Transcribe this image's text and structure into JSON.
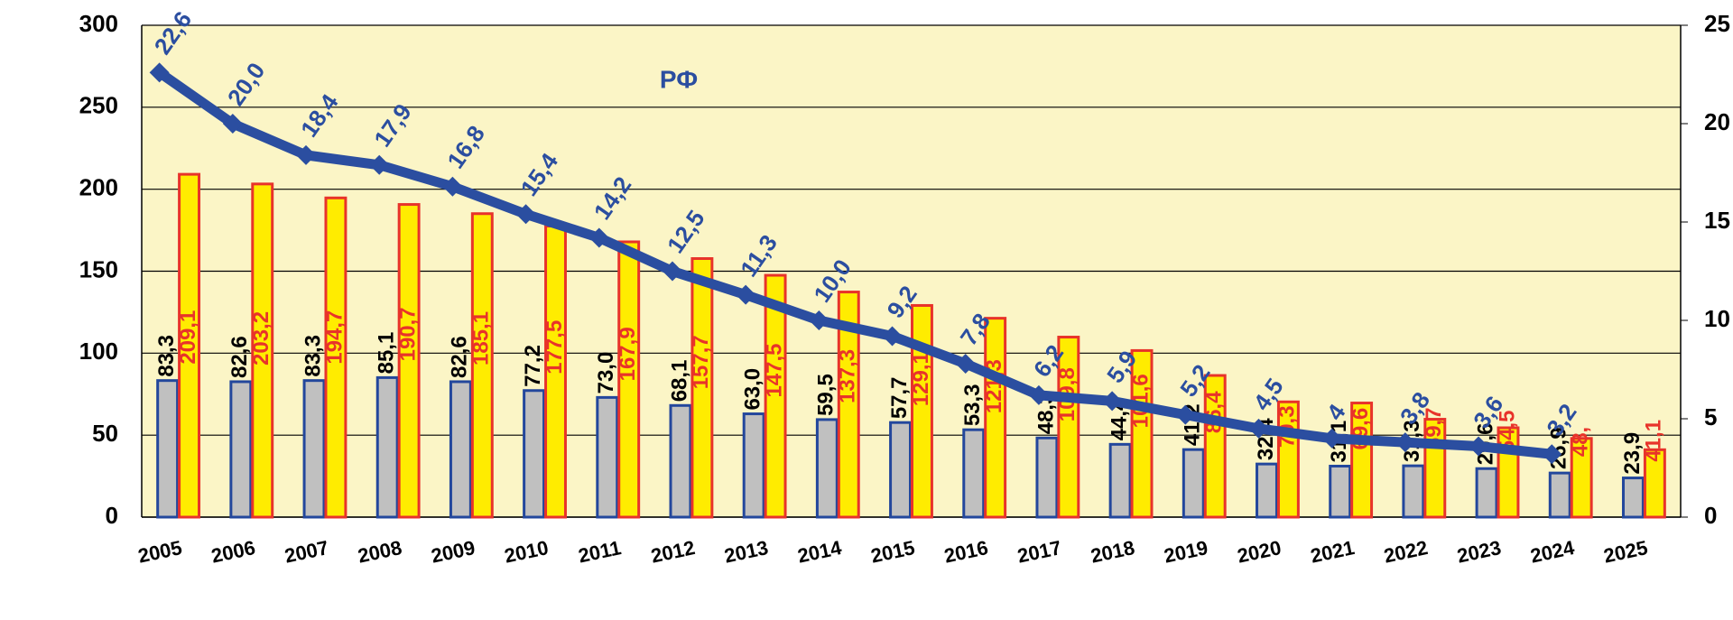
{
  "chart_data": {
    "type": "bar",
    "annotation": "РФ",
    "categories": [
      "2005",
      "2006",
      "2007",
      "2008",
      "2009",
      "2010",
      "2011",
      "2012",
      "2013",
      "2014",
      "2015",
      "2016",
      "2017",
      "2018",
      "2019",
      "2020",
      "2021",
      "2022",
      "2023",
      "2024",
      "2025"
    ],
    "series": [
      {
        "type": "bar",
        "color": "#c0c0c0",
        "edge": "#23479c",
        "label_color": "#000000",
        "values": [
          83.3,
          82.6,
          83.3,
          85.1,
          82.6,
          77.2,
          73.0,
          68.1,
          63.0,
          59.5,
          57.7,
          53.3,
          48.3,
          44.4,
          41.2,
          32.4,
          31.1,
          31.3,
          29.6,
          26.9,
          23.9
        ],
        "value_labels": [
          "83,3",
          "82,6",
          "83,3",
          "85,1",
          "82,6",
          "77,2",
          "73,0",
          "68,1",
          "63,0",
          "59,5",
          "57,7",
          "53,3",
          "48,3",
          "44,4",
          "41,2",
          "32,4",
          "31,1",
          "31,3",
          "29,6",
          "26,9",
          "23,9"
        ]
      },
      {
        "type": "bar",
        "color": "#ffec00",
        "edge": "#e8332a",
        "label_color": "#e8332a",
        "values": [
          209.1,
          203.2,
          194.7,
          190.7,
          185.1,
          177.5,
          167.9,
          157.7,
          147.5,
          137.3,
          129.1,
          121.3,
          109.8,
          101.6,
          86.4,
          70.3,
          69.6,
          59.7,
          54.5,
          48,
          41.1
        ],
        "value_labels": [
          "209,1",
          "203,2",
          "194,7",
          "190,7",
          "185,1",
          "177,5",
          "167,9",
          "157,7",
          "147,5",
          "137,3",
          "129,1",
          "121,3",
          "109,8",
          "101,6",
          "86,4",
          "70,3",
          "69,6",
          "59,7",
          "54,5",
          "48,",
          "41,1"
        ]
      },
      {
        "type": "line",
        "axis": "y2",
        "color": "#2b4ea0",
        "label_color": "#2b4ea0",
        "values": [
          22.6,
          20.0,
          18.4,
          17.9,
          16.8,
          15.4,
          14.2,
          12.5,
          11.3,
          10.0,
          9.2,
          7.8,
          6.2,
          5.9,
          5.2,
          4.5,
          4,
          3.8,
          3.6,
          3.2,
          null
        ],
        "value_labels": [
          "22,6",
          "20,0",
          "18,4",
          "17,9",
          "16,8",
          "15,4",
          "14,2",
          "12,5",
          "11,3",
          "10,0",
          "9,2",
          "7,8",
          "6,2",
          "5,9",
          "5,2",
          "4,5",
          "4",
          "3,8",
          "3,6",
          "3,2",
          null
        ]
      }
    ],
    "ylim": [
      0,
      300
    ],
    "yticks": [
      0,
      50,
      100,
      150,
      200,
      250,
      300
    ],
    "y2lim": [
      0,
      25
    ],
    "y2ticks": [
      0,
      5,
      10,
      15,
      20,
      25
    ],
    "grid": true,
    "plot_background": "#fbf5c6"
  }
}
